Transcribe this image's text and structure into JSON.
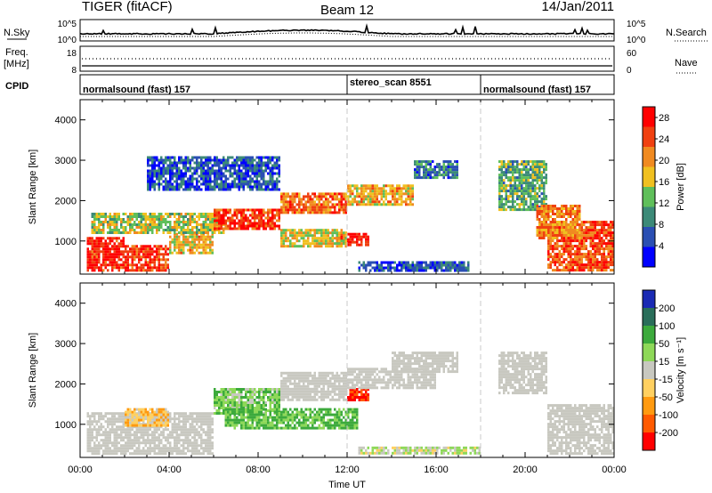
{
  "header": {
    "radar_title": "TIGER (fitACF)",
    "beam_title": "Beam 12",
    "date": "14/Jan/2011"
  },
  "strips": {
    "nsky": {
      "left_label": "N.Sky",
      "right_label": "N.Search",
      "left_ticks": [
        "10^5",
        "10^0"
      ],
      "right_ticks": [
        "10^5",
        "10^0"
      ]
    },
    "freq": {
      "left_label_1": "Freq.",
      "left_label_2": "[MHz]",
      "right_label": "Nave",
      "left_ticks": [
        "18",
        "8"
      ],
      "right_ticks": [
        "60",
        "0"
      ]
    },
    "cpid": {
      "label": "CPID",
      "segments": [
        {
          "name": "normalsound (fast) 157",
          "start": 0,
          "end": 12
        },
        {
          "name": "stereo_scan 8551",
          "start": 12,
          "end": 18
        },
        {
          "name": "normalsound (fast) 157",
          "start": 18,
          "end": 24
        }
      ]
    }
  },
  "chart_data": [
    {
      "type": "heatmap",
      "name": "power",
      "ylabel": "Slant Range [km]",
      "xlim": [
        0,
        24
      ],
      "ylim": [
        180,
        4500
      ],
      "y_ticks": [
        "1000",
        "2000",
        "3000",
        "4000"
      ],
      "colorbar_label": "Power [dB]",
      "colorbar_ticks": [
        "4",
        "8",
        "12",
        "16",
        "20",
        "24",
        "28"
      ],
      "colorbar_range": [
        0,
        30
      ],
      "colors": [
        "#0000ff",
        "#2a4fb3",
        "#3c8a78",
        "#5fbf5a",
        "#f0c020",
        "#f08a20",
        "#f04010",
        "#ff0000"
      ],
      "regions": [
        {
          "t": [
            0.3,
            2.0
          ],
          "r": [
            300,
            1100
          ],
          "v": 27
        },
        {
          "t": [
            2.0,
            4.0
          ],
          "r": [
            300,
            900
          ],
          "v": 25
        },
        {
          "t": [
            4.0,
            6.0
          ],
          "r": [
            700,
            1200
          ],
          "v": 18
        },
        {
          "t": [
            0.5,
            6.5
          ],
          "r": [
            1200,
            1700
          ],
          "v": 15
        },
        {
          "t": [
            6.0,
            9.0
          ],
          "r": [
            1300,
            1800
          ],
          "v": 26
        },
        {
          "t": [
            9.0,
            12.0
          ],
          "r": [
            1700,
            2200
          ],
          "v": 22
        },
        {
          "t": [
            12.0,
            15.0
          ],
          "r": [
            1900,
            2400
          ],
          "v": 19
        },
        {
          "t": [
            11.5,
            13.0
          ],
          "r": [
            900,
            1200
          ],
          "v": 28
        },
        {
          "t": [
            9.0,
            12.0
          ],
          "r": [
            900,
            1300
          ],
          "v": 17
        },
        {
          "t": [
            3.0,
            9.0
          ],
          "r": [
            2300,
            3100
          ],
          "v": 6
        },
        {
          "t": [
            15.0,
            17.0
          ],
          "r": [
            2600,
            3000
          ],
          "v": 8
        },
        {
          "t": [
            12.5,
            17.5
          ],
          "r": [
            300,
            500
          ],
          "v": 6
        },
        {
          "t": [
            18.8,
            21.0
          ],
          "r": [
            1800,
            3000
          ],
          "v": 12
        },
        {
          "t": [
            21.0,
            24.0
          ],
          "r": [
            300,
            1500
          ],
          "v": 24
        },
        {
          "t": [
            20.5,
            22.5
          ],
          "r": [
            1100,
            1900
          ],
          "v": 21
        }
      ]
    },
    {
      "type": "heatmap",
      "name": "velocity",
      "ylabel": "Slant Range [km]",
      "xlabel": "Time UT",
      "x_ticks": [
        "00:00",
        "04:00",
        "08:00",
        "12:00",
        "16:00",
        "20:00",
        "00:00"
      ],
      "xlim": [
        0,
        24
      ],
      "ylim": [
        180,
        4500
      ],
      "y_ticks": [
        "1000",
        "2000",
        "3000",
        "4000"
      ],
      "colorbar_label": "Velocity [m s⁻¹]",
      "colorbar_ticks": [
        "-200",
        "-100",
        "-50",
        "-15",
        "15",
        "50",
        "100",
        "200"
      ],
      "colors": [
        "#ff0000",
        "#ff5a00",
        "#ff9a10",
        "#ffd060",
        "#c8c8c0",
        "#8ed858",
        "#3caa3c",
        "#2a6e5a",
        "#1a2ab4"
      ],
      "regions": [
        {
          "t": [
            0.3,
            6.0
          ],
          "r": [
            300,
            1300
          ],
          "v": 0
        },
        {
          "t": [
            6.0,
            9.0
          ],
          "r": [
            1300,
            1900
          ],
          "v": 40
        },
        {
          "t": [
            9.0,
            12.0
          ],
          "r": [
            1600,
            2300
          ],
          "v": 0
        },
        {
          "t": [
            6.5,
            12.5
          ],
          "r": [
            900,
            1400
          ],
          "v": 60
        },
        {
          "t": [
            12.0,
            13.0
          ],
          "r": [
            1600,
            1900
          ],
          "v": -200
        },
        {
          "t": [
            12.0,
            16.0
          ],
          "r": [
            1900,
            2400
          ],
          "v": 0
        },
        {
          "t": [
            14.0,
            17.0
          ],
          "r": [
            2300,
            2800
          ],
          "v": 0
        },
        {
          "t": [
            18.8,
            21.0
          ],
          "r": [
            1800,
            2800
          ],
          "v": 0
        },
        {
          "t": [
            21.0,
            24.0
          ],
          "r": [
            300,
            1500
          ],
          "v": 0
        },
        {
          "t": [
            2.0,
            4.0
          ],
          "r": [
            1000,
            1400
          ],
          "v": -40
        },
        {
          "t": [
            12.5,
            18.0
          ],
          "r": [
            300,
            450
          ],
          "v": 10
        }
      ]
    }
  ]
}
